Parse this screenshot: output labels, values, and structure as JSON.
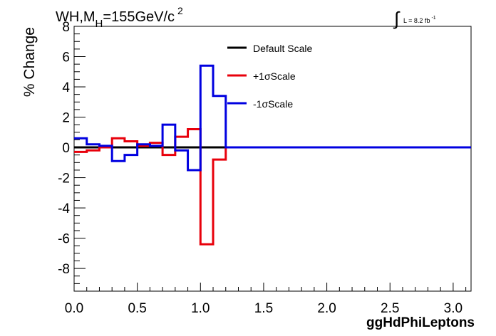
{
  "chart_data": {
    "type": "line",
    "style": "step histogram",
    "title_parts": {
      "main": "WH,M",
      "sub": "H",
      "after": "=155GeV/c",
      "sup": "2"
    },
    "lumi": {
      "integral_sign": "∫",
      "text": "L = 8.2 fb",
      "sup": "-1"
    },
    "xlabel": "ggHdPhiLeptons",
    "ylabel": "% Change",
    "xlim": [
      0,
      3.1416
    ],
    "ylim": [
      -9.5,
      8
    ],
    "x_ticks": [
      {
        "value": 0.0,
        "label": "0.0"
      },
      {
        "value": 0.5,
        "label": "0.5"
      },
      {
        "value": 1.0,
        "label": "1.0"
      },
      {
        "value": 1.5,
        "label": "1.5"
      },
      {
        "value": 2.0,
        "label": "2.0"
      },
      {
        "value": 2.5,
        "label": "2.5"
      },
      {
        "value": 3.0,
        "label": "3.0"
      }
    ],
    "y_ticks": [
      {
        "value": 8,
        "label": "8"
      },
      {
        "value": 6,
        "label": "6"
      },
      {
        "value": 4,
        "label": "4"
      },
      {
        "value": 2,
        "label": "2"
      },
      {
        "value": 0,
        "label": "0"
      },
      {
        "value": -2,
        "label": "-2"
      },
      {
        "value": -4,
        "label": "-4"
      },
      {
        "value": -6,
        "label": "-6"
      },
      {
        "value": -8,
        "label": "-8"
      }
    ],
    "grid": false,
    "legend_position": "top-center",
    "bin_edges": [
      0,
      0.1,
      0.2,
      0.3,
      0.4,
      0.5,
      0.6,
      0.7,
      0.8,
      0.9,
      1.0,
      1.1,
      1.2,
      1.3,
      1.4,
      1.5,
      1.6,
      1.7,
      1.8,
      1.9,
      2.0,
      2.1,
      2.2,
      2.3,
      2.4,
      2.5,
      2.6,
      2.7,
      2.8,
      2.9,
      3.0,
      3.1416
    ],
    "series": [
      {
        "name": "Default Scale",
        "color": "#000000",
        "values": [
          0,
          0,
          0,
          0,
          0,
          0,
          0,
          0,
          0,
          0,
          0,
          0,
          0,
          0,
          0,
          0,
          0,
          0,
          0,
          0,
          0,
          0,
          0,
          0,
          0,
          0,
          0,
          0,
          0,
          0,
          0
        ]
      },
      {
        "name": "+1σScale",
        "color": "#e8000b",
        "values": [
          -0.3,
          -0.2,
          0.0,
          0.6,
          0.4,
          0.1,
          0.3,
          -0.5,
          0.7,
          1.2,
          -6.4,
          -0.8,
          0,
          0,
          0,
          0,
          0,
          0,
          0,
          0,
          0,
          0,
          0,
          0,
          0,
          0,
          0,
          0,
          0,
          0,
          0
        ]
      },
      {
        "name": "-1σScale",
        "color": "#0000e0",
        "values": [
          0.6,
          0.2,
          0.1,
          -0.9,
          -0.5,
          0.2,
          0.1,
          1.5,
          -0.2,
          -1.5,
          5.4,
          3.4,
          0,
          0,
          0,
          0,
          0,
          0,
          0,
          0,
          0,
          0,
          0,
          0,
          0,
          0,
          0,
          0,
          0,
          0,
          0
        ]
      }
    ]
  }
}
